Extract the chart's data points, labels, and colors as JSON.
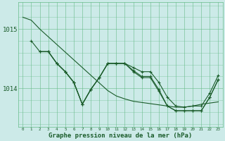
{
  "x": [
    0,
    1,
    2,
    3,
    4,
    5,
    6,
    7,
    8,
    9,
    10,
    11,
    12,
    13,
    14,
    15,
    16,
    17,
    18,
    19,
    20,
    21,
    22,
    23
  ],
  "series1": [
    1015.2,
    1015.15,
    1015.0,
    1014.87,
    1014.74,
    1014.61,
    1014.48,
    1014.35,
    1014.22,
    1014.09,
    1013.96,
    1013.87,
    1013.82,
    1013.78,
    1013.76,
    1013.74,
    1013.72,
    1013.7,
    1013.68,
    1013.68,
    1013.7,
    1013.73,
    1013.75,
    1013.77
  ],
  "series2": [
    null,
    1014.8,
    1014.62,
    1014.62,
    1014.42,
    1014.28,
    1014.1,
    1013.73,
    1013.98,
    1014.18,
    1014.42,
    1014.42,
    1014.42,
    1014.35,
    1014.28,
    1014.28,
    1014.1,
    1013.85,
    1013.7,
    1013.68,
    1013.7,
    1013.7,
    1013.92,
    1014.22
  ],
  "series3": [
    null,
    null,
    1014.62,
    1014.62,
    1014.42,
    1014.28,
    1014.1,
    1013.73,
    1013.98,
    1014.18,
    1014.42,
    1014.42,
    1014.42,
    1014.3,
    1014.2,
    1014.2,
    1013.98,
    1013.7,
    1013.62,
    1013.62,
    1013.62,
    1013.62,
    1013.85,
    1014.15
  ],
  "series4": [
    null,
    null,
    null,
    1014.62,
    1014.42,
    1014.28,
    1014.1,
    1013.73,
    1013.98,
    1014.18,
    1014.42,
    1014.42,
    1014.42,
    1014.28,
    1014.18,
    1014.18,
    1013.95,
    1013.7,
    1013.62,
    1013.62,
    1013.62,
    1013.62,
    1013.85,
    1014.15
  ],
  "bg_color": "#cceae8",
  "grid_color": "#66bb88",
  "line_color": "#1a5c2a",
  "xlabel": "Graphe pression niveau de la mer (hPa)",
  "ylim": [
    1013.35,
    1015.45
  ],
  "xlim": [
    -0.5,
    23.5
  ]
}
